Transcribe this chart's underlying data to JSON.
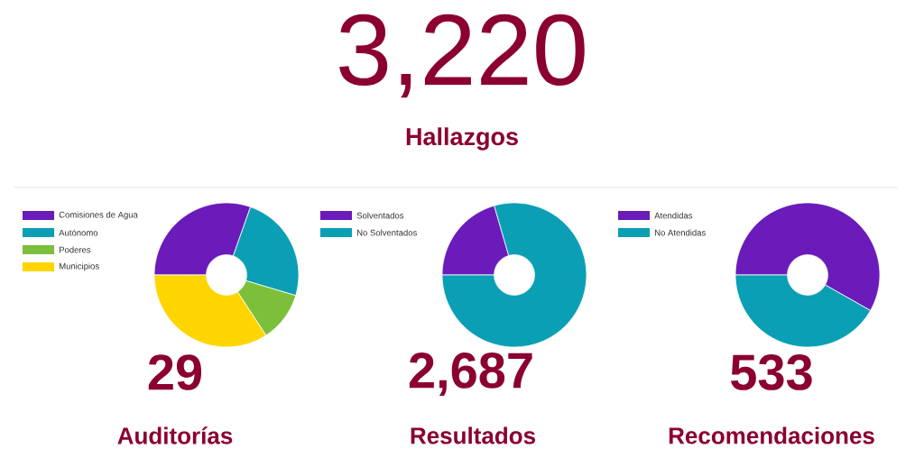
{
  "chart_data": [
    {
      "type": "other",
      "title": "Hallazgos",
      "annotations": [
        "3,220"
      ]
    },
    {
      "type": "donut",
      "title": "Auditorías",
      "annotations": [
        "29"
      ],
      "categories": [
        "Comisiones de Agua",
        "Autónomo",
        "Poderes",
        "Municipios"
      ],
      "values": [
        30.4,
        24.2,
        11.2,
        34.2
      ],
      "colors": [
        "#6a1bb9",
        "#0a9fb5",
        "#7cbf3a",
        "#ffd500"
      ],
      "legend": "top left"
    },
    {
      "type": "donut",
      "title": "Resultados",
      "annotations": [
        "2,687"
      ],
      "categories": [
        "Solventados",
        "No Solventados"
      ],
      "values": [
        20.5,
        79.5
      ],
      "colors": [
        "#6a1bb9",
        "#0a9fb5"
      ],
      "legend": "top left"
    },
    {
      "type": "donut",
      "title": "Recomendaciones",
      "annotations": [
        "533"
      ],
      "categories": [
        "Atendidas",
        "No Atendidas"
      ],
      "values": [
        58.2,
        41.8
      ],
      "colors": [
        "#6a1bb9",
        "#0a9fb5"
      ],
      "legend": "top left"
    }
  ]
}
